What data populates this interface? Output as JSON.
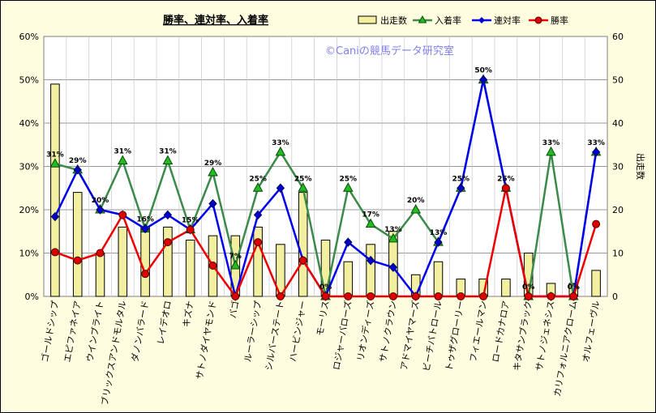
{
  "chart_data": {
    "type": "bar+line",
    "title": "勝率、連対率、入着率",
    "watermark": "©Caniの競馬データ研究室",
    "categories": [
      "ゴールドシップ",
      "エピファネイア",
      "ウインブライト",
      "ブリックスアンドモルタル",
      "ダノンバラード",
      "レイデオロ",
      "キズナ",
      "サトノダイヤモンド",
      "バゴ",
      "ルーラーシップ",
      "シルバーステート",
      "ハービンジャー",
      "モーリス",
      "ロジャーバローズ",
      "リオンディーズ",
      "サトノクラウン",
      "アドマイヤマーズ",
      "ビーチパトロール",
      "トゥザグローリー",
      "フィエールマン",
      "ロードカナロア",
      "キタサンブラック",
      "サトノジェネシス",
      "カリフォルニアクローム",
      "オルフェーヴル"
    ],
    "left_axis": {
      "min": 0,
      "max": 60,
      "ticks": [
        "0%",
        "10%",
        "20%",
        "30%",
        "40%",
        "50%",
        "60%"
      ]
    },
    "right_axis": {
      "min": 0,
      "max": 60,
      "label": "出走数",
      "ticks": [
        "0",
        "10",
        "20",
        "30",
        "40",
        "50",
        "60"
      ]
    },
    "series": [
      {
        "name": "出走数",
        "kind": "bar",
        "axis": "right",
        "color": "#f2f0a0",
        "values": [
          49,
          24,
          10,
          16,
          16,
          16,
          13,
          14,
          14,
          16,
          12,
          24,
          13,
          8,
          12,
          15,
          5,
          8,
          4,
          4,
          4,
          10,
          3,
          3,
          6
        ]
      },
      {
        "name": "入着率",
        "kind": "line",
        "color": "#3a8a4a",
        "marker": "triangle",
        "marker_color": "#22bb22",
        "values": [
          30.6,
          29.2,
          20,
          31.3,
          15.6,
          31.3,
          15.4,
          28.6,
          7.1,
          25,
          33.3,
          25,
          0,
          25,
          16.7,
          13.3,
          20,
          12.5,
          25,
          50,
          25,
          0,
          33.3,
          0,
          33.3
        ]
      },
      {
        "name": "連対率",
        "kind": "line",
        "color": "#0000ee",
        "marker": "diamond",
        "marker_color": "#0000cc",
        "values": [
          18.4,
          29.2,
          20,
          18.8,
          15.6,
          18.8,
          15.4,
          21.4,
          0,
          18.8,
          25,
          8.3,
          0,
          12.5,
          8.3,
          6.7,
          0,
          12.5,
          25,
          50,
          25,
          0,
          0,
          0,
          33.3
        ]
      },
      {
        "name": "勝率",
        "kind": "line",
        "color": "#ee0000",
        "marker": "circle",
        "marker_color": "#dd0000",
        "values": [
          10.2,
          8.3,
          10,
          18.8,
          5.2,
          12.5,
          15.4,
          7.1,
          0,
          12.5,
          0,
          8.3,
          0,
          0,
          0,
          0,
          0,
          0,
          0,
          0,
          25,
          0,
          0,
          0,
          16.7
        ]
      }
    ],
    "data_labels": [
      "31%",
      "29%",
      "20%",
      "31%",
      "16%",
      "31%",
      "15%",
      "29%",
      "7%",
      "25%",
      "33%",
      "25%",
      "0%",
      "25%",
      "17%",
      "13%",
      "20%",
      "13%",
      "25%",
      "50%",
      "25%",
      "0%",
      "33%",
      "0%",
      "33%"
    ],
    "colors": {
      "background": "#fffde0",
      "plot_background": "#ffffff",
      "grid": "#9a9a9a",
      "watermark": "#7f7fee"
    }
  }
}
